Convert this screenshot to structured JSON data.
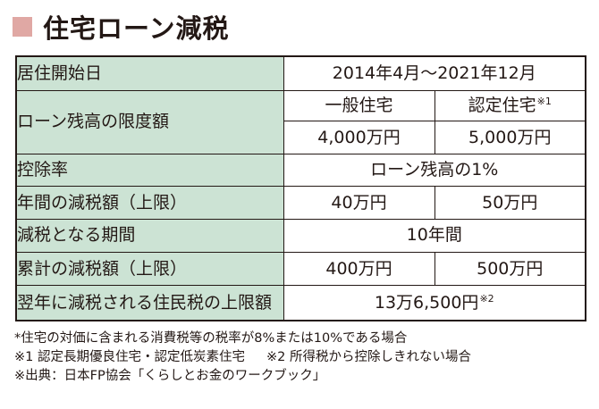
{
  "colors": {
    "header_fill": "#cce3d4",
    "title_square": "#e0a8a4",
    "ink": "#231815"
  },
  "title": "住宅ローン減税",
  "table": {
    "period_label": "居住開始日",
    "period_value": "2014年4月〜2021年12月",
    "limit_label": "ローン残高の限度額",
    "col_general": "一般住宅",
    "col_certified": "認定住宅",
    "col_certified_note": "※1",
    "limit_general": "4,000万円",
    "limit_certified": "5,000万円",
    "rate_label": "控除率",
    "rate_value": "ローン残高の1%",
    "annual_label": "年間の減税額（上限）",
    "annual_general": "40万円",
    "annual_certified": "50万円",
    "duration_label": "減税となる期間",
    "duration_value": "10年間",
    "total_label": "累計の減税額（上限）",
    "total_general": "400万円",
    "total_certified": "500万円",
    "resident_label": "翌年に減税される住民税の上限額",
    "resident_value": "13万6,500円",
    "resident_note": "※2"
  },
  "notes": {
    "line1": "*住宅の対価に含まれる消費税等の税率が8%または10%である場合",
    "line2a": "※1 認定長期優良住宅・認定低炭素住宅",
    "line2b": "※2 所得税から控除しきれない場合",
    "line3": "※出典：日本FP協会「くらしとお金のワークブック」"
  }
}
